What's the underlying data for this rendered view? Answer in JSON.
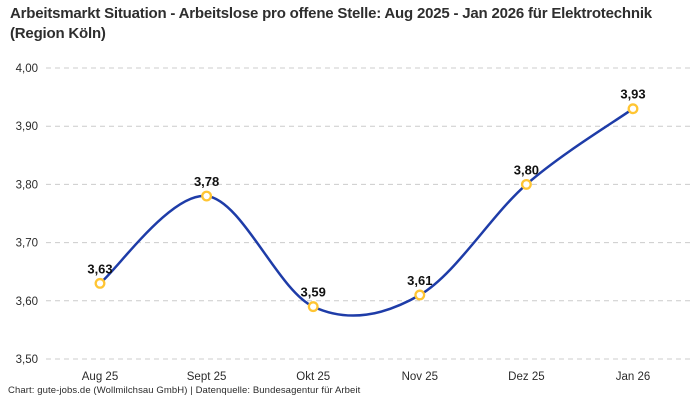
{
  "page": {
    "background": "#ffffff"
  },
  "chart_data": {
    "type": "line",
    "title": "Arbeitsmarkt Situation - Arbeitslose pro offene Stelle: Aug 2025 - Jan 2026 für Elektrotechnik (Region Köln)",
    "categories": [
      "Aug 25",
      "Sept 25",
      "Okt 25",
      "Nov 25",
      "Dez 25",
      "Jan 26"
    ],
    "values": [
      3.63,
      3.78,
      3.59,
      3.61,
      3.8,
      3.93
    ],
    "point_labels": [
      "3,63",
      "3,78",
      "3,59",
      "3,61",
      "3,80",
      "3,93"
    ],
    "ylim": [
      3.5,
      4.0
    ],
    "y_ticks": [
      {
        "value": 3.5,
        "label": "3,50"
      },
      {
        "value": 3.6,
        "label": "3,60"
      },
      {
        "value": 3.7,
        "label": "3,70"
      },
      {
        "value": 3.8,
        "label": "3,80"
      },
      {
        "value": 3.9,
        "label": "3,90"
      },
      {
        "value": 4.0,
        "label": "4,00"
      }
    ],
    "grid": "horizontal-dashed",
    "legend": "none",
    "line_style": "smooth-spline",
    "colors": {
      "line": "#1e3ca8",
      "marker_ring": "#ffc533",
      "marker_fill": "#ffffff",
      "grid": "#cccccc",
      "axis_text": "#2b2b2b",
      "label_text": "#111111",
      "title_text": "#2e2e2e"
    }
  },
  "footer": {
    "attribution": "Chart: gute-jobs.de (Wollmilchsau GmbH) | Datenquelle: Bundesagentur für Arbeit"
  }
}
